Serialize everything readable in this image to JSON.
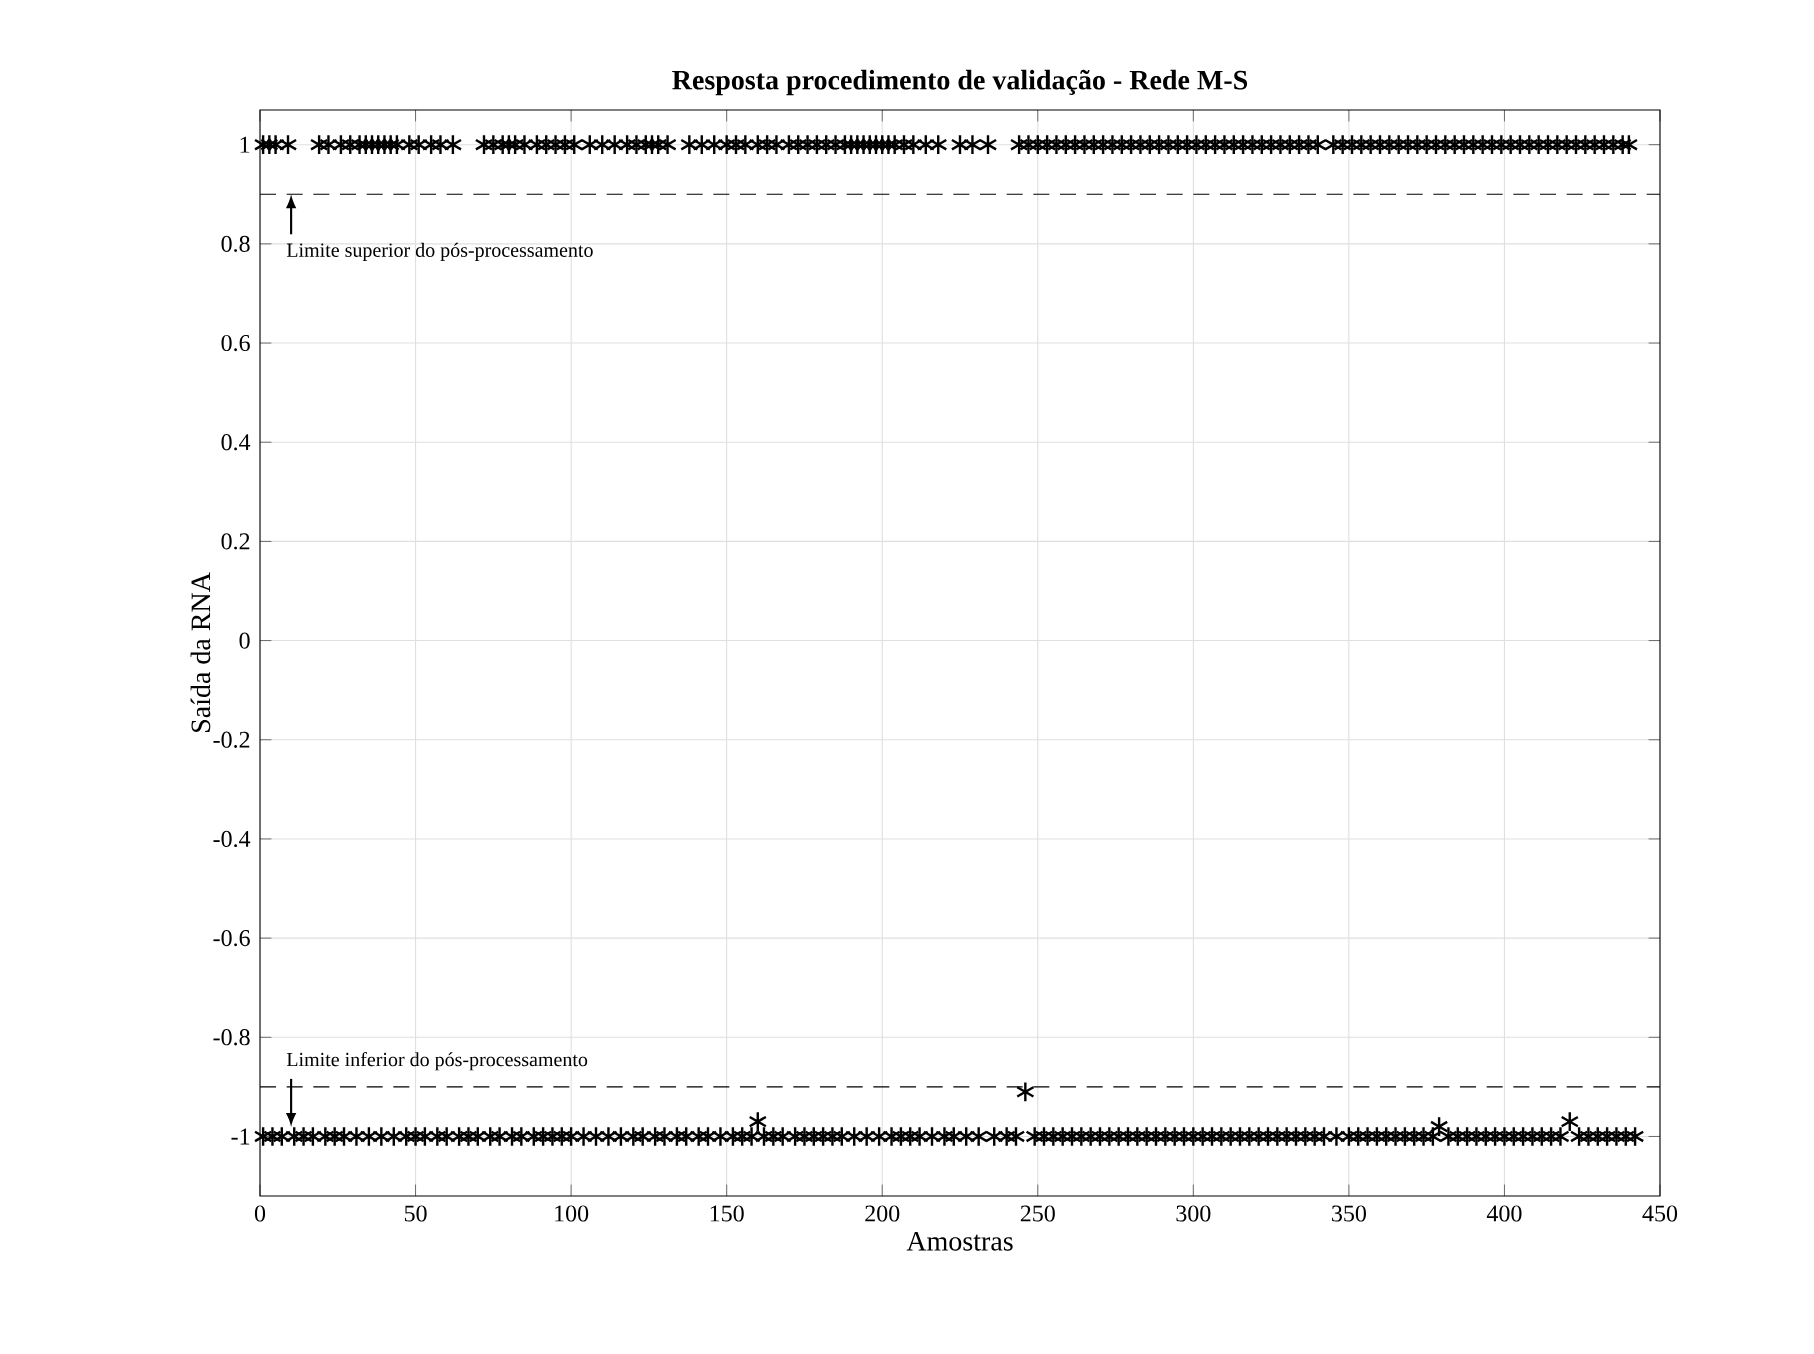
{
  "chart_data": {
    "type": "scatter",
    "title": "Resposta procedimento de validação - Rede M-S",
    "xlabel": "Amostras",
    "ylabel": "Saída da RNA",
    "xlim": [
      0,
      450
    ],
    "ylim": [
      -1.12,
      1.07
    ],
    "xticks": [
      0,
      50,
      100,
      150,
      200,
      250,
      300,
      350,
      400,
      450
    ],
    "yticks": [
      -1,
      -0.8,
      -0.6,
      -0.4,
      -0.2,
      0,
      0.2,
      0.4,
      0.6,
      0.8,
      1
    ],
    "grid": true,
    "marker": "cross",
    "series": [
      {
        "color": "#000000",
        "x": [
          1,
          3,
          5,
          9,
          19,
          22,
          26,
          29,
          32,
          34,
          36,
          38,
          40,
          42,
          44,
          48,
          51,
          55,
          58,
          62,
          72,
          75,
          78,
          80,
          82,
          85,
          89,
          92,
          95,
          98,
          101,
          106,
          110,
          114,
          118,
          121,
          124,
          126,
          128,
          131,
          138,
          142,
          146,
          150,
          153,
          156,
          160,
          163,
          166,
          170,
          173,
          176,
          179,
          182,
          185,
          188,
          190,
          192,
          194,
          196,
          198,
          200,
          202,
          204,
          207,
          210,
          214,
          218,
          225,
          229,
          234,
          244,
          247,
          250,
          253,
          256,
          259,
          262,
          265,
          268,
          271,
          274,
          277,
          280,
          283,
          286,
          289,
          292,
          295,
          298,
          301,
          304,
          307,
          310,
          313,
          316,
          319,
          322,
          325,
          328,
          331,
          334,
          337,
          340,
          345,
          348,
          351,
          354,
          357,
          360,
          363,
          366,
          369,
          372,
          375,
          378,
          381,
          384,
          387,
          390,
          393,
          396,
          399,
          402,
          405,
          408,
          411,
          414,
          417,
          420,
          423,
          426,
          429,
          432,
          435,
          438,
          440
        ],
        "values": [
          1,
          1,
          1,
          1,
          1,
          1,
          1,
          1,
          1,
          1,
          1,
          1,
          1,
          1,
          1,
          1,
          1,
          1,
          1,
          1,
          1,
          1,
          1,
          1,
          1,
          1,
          1,
          1,
          1,
          1,
          1,
          1,
          1,
          1,
          1,
          1,
          1,
          1,
          1,
          1,
          1,
          1,
          1,
          1,
          1,
          1,
          1,
          1,
          1,
          1,
          1,
          1,
          1,
          1,
          1,
          1,
          1,
          1,
          1,
          1,
          1,
          1,
          1,
          1,
          1,
          1,
          1,
          1,
          1,
          1,
          1,
          1,
          1,
          1,
          1,
          1,
          1,
          1,
          1,
          1,
          1,
          1,
          1,
          1,
          1,
          1,
          1,
          1,
          1,
          1,
          1,
          1,
          1,
          1,
          1,
          1,
          1,
          1,
          1,
          1,
          1,
          1,
          1,
          1,
          1,
          1,
          1,
          1,
          1,
          1,
          1,
          1,
          1,
          1,
          1,
          1,
          1,
          1,
          1,
          1,
          1,
          1,
          1,
          1,
          1,
          1,
          1,
          1,
          1,
          1,
          1,
          1,
          1,
          1,
          1,
          1,
          1
        ]
      },
      {
        "color": "#000000",
        "x": [
          1,
          4,
          7,
          11,
          14,
          17,
          21,
          24,
          27,
          31,
          35,
          39,
          43,
          47,
          50,
          53,
          57,
          60,
          64,
          67,
          70,
          74,
          77,
          81,
          84,
          88,
          91,
          94,
          97,
          100,
          104,
          108,
          112,
          116,
          120,
          123,
          127,
          130,
          134,
          137,
          141,
          144,
          148,
          152,
          155,
          158,
          160,
          162,
          165,
          168,
          172,
          175,
          178,
          181,
          184,
          187,
          191,
          195,
          199,
          203,
          206,
          209,
          212,
          216,
          220,
          223,
          227,
          231,
          236,
          240,
          243,
          246,
          249,
          252,
          255,
          258,
          261,
          264,
          267,
          270,
          273,
          276,
          279,
          282,
          285,
          288,
          291,
          294,
          297,
          300,
          303,
          306,
          309,
          312,
          315,
          318,
          321,
          324,
          327,
          330,
          333,
          336,
          339,
          342,
          346,
          350,
          353,
          356,
          359,
          362,
          365,
          368,
          371,
          374,
          377,
          379,
          382,
          385,
          388,
          391,
          394,
          397,
          400,
          403,
          406,
          409,
          412,
          415,
          418,
          421,
          424,
          427,
          430,
          433,
          436,
          439,
          442
        ],
        "values": [
          -1,
          -1,
          -1,
          -1,
          -1,
          -1,
          -1,
          -1,
          -1,
          -1,
          -1,
          -1,
          -1,
          -1,
          -1,
          -1,
          -1,
          -1,
          -1,
          -1,
          -1,
          -1,
          -1,
          -1,
          -1,
          -1,
          -1,
          -1,
          -1,
          -1,
          -1,
          -1,
          -1,
          -1,
          -1,
          -1,
          -1,
          -1,
          -1,
          -1,
          -1,
          -1,
          -1,
          -1,
          -1,
          -1,
          -0.97,
          -1,
          -1,
          -1,
          -1,
          -1,
          -1,
          -1,
          -1,
          -1,
          -1,
          -1,
          -1,
          -1,
          -1,
          -1,
          -1,
          -1,
          -1,
          -1,
          -1,
          -1,
          -1,
          -1,
          -1,
          -0.91,
          -1,
          -1,
          -1,
          -1,
          -1,
          -1,
          -1,
          -1,
          -1,
          -1,
          -1,
          -1,
          -1,
          -1,
          -1,
          -1,
          -1,
          -1,
          -1,
          -1,
          -1,
          -1,
          -1,
          -1,
          -1,
          -1,
          -1,
          -1,
          -1,
          -1,
          -1,
          -1,
          -1,
          -1,
          -1,
          -1,
          -1,
          -1,
          -1,
          -1,
          -1,
          -1,
          -1,
          -0.98,
          -1,
          -1,
          -1,
          -1,
          -1,
          -1,
          -1,
          -1,
          -1,
          -1,
          -1,
          -1,
          -1,
          -0.97,
          -1,
          -1,
          -1,
          -1,
          -1,
          -1,
          -1
        ]
      }
    ],
    "ref_lines": [
      {
        "axis": "y",
        "value": 0.9,
        "line_style": "dashed",
        "color": "#000000"
      },
      {
        "axis": "y",
        "value": -0.9,
        "line_style": "dashed",
        "color": "#000000"
      }
    ],
    "annotations": [
      {
        "text": "Limite superior do pós-processamento",
        "x": 10,
        "y": 0.9
      },
      {
        "text": "Limite inferior do pós-processamento",
        "x": 10,
        "y": -0.9
      }
    ]
  }
}
